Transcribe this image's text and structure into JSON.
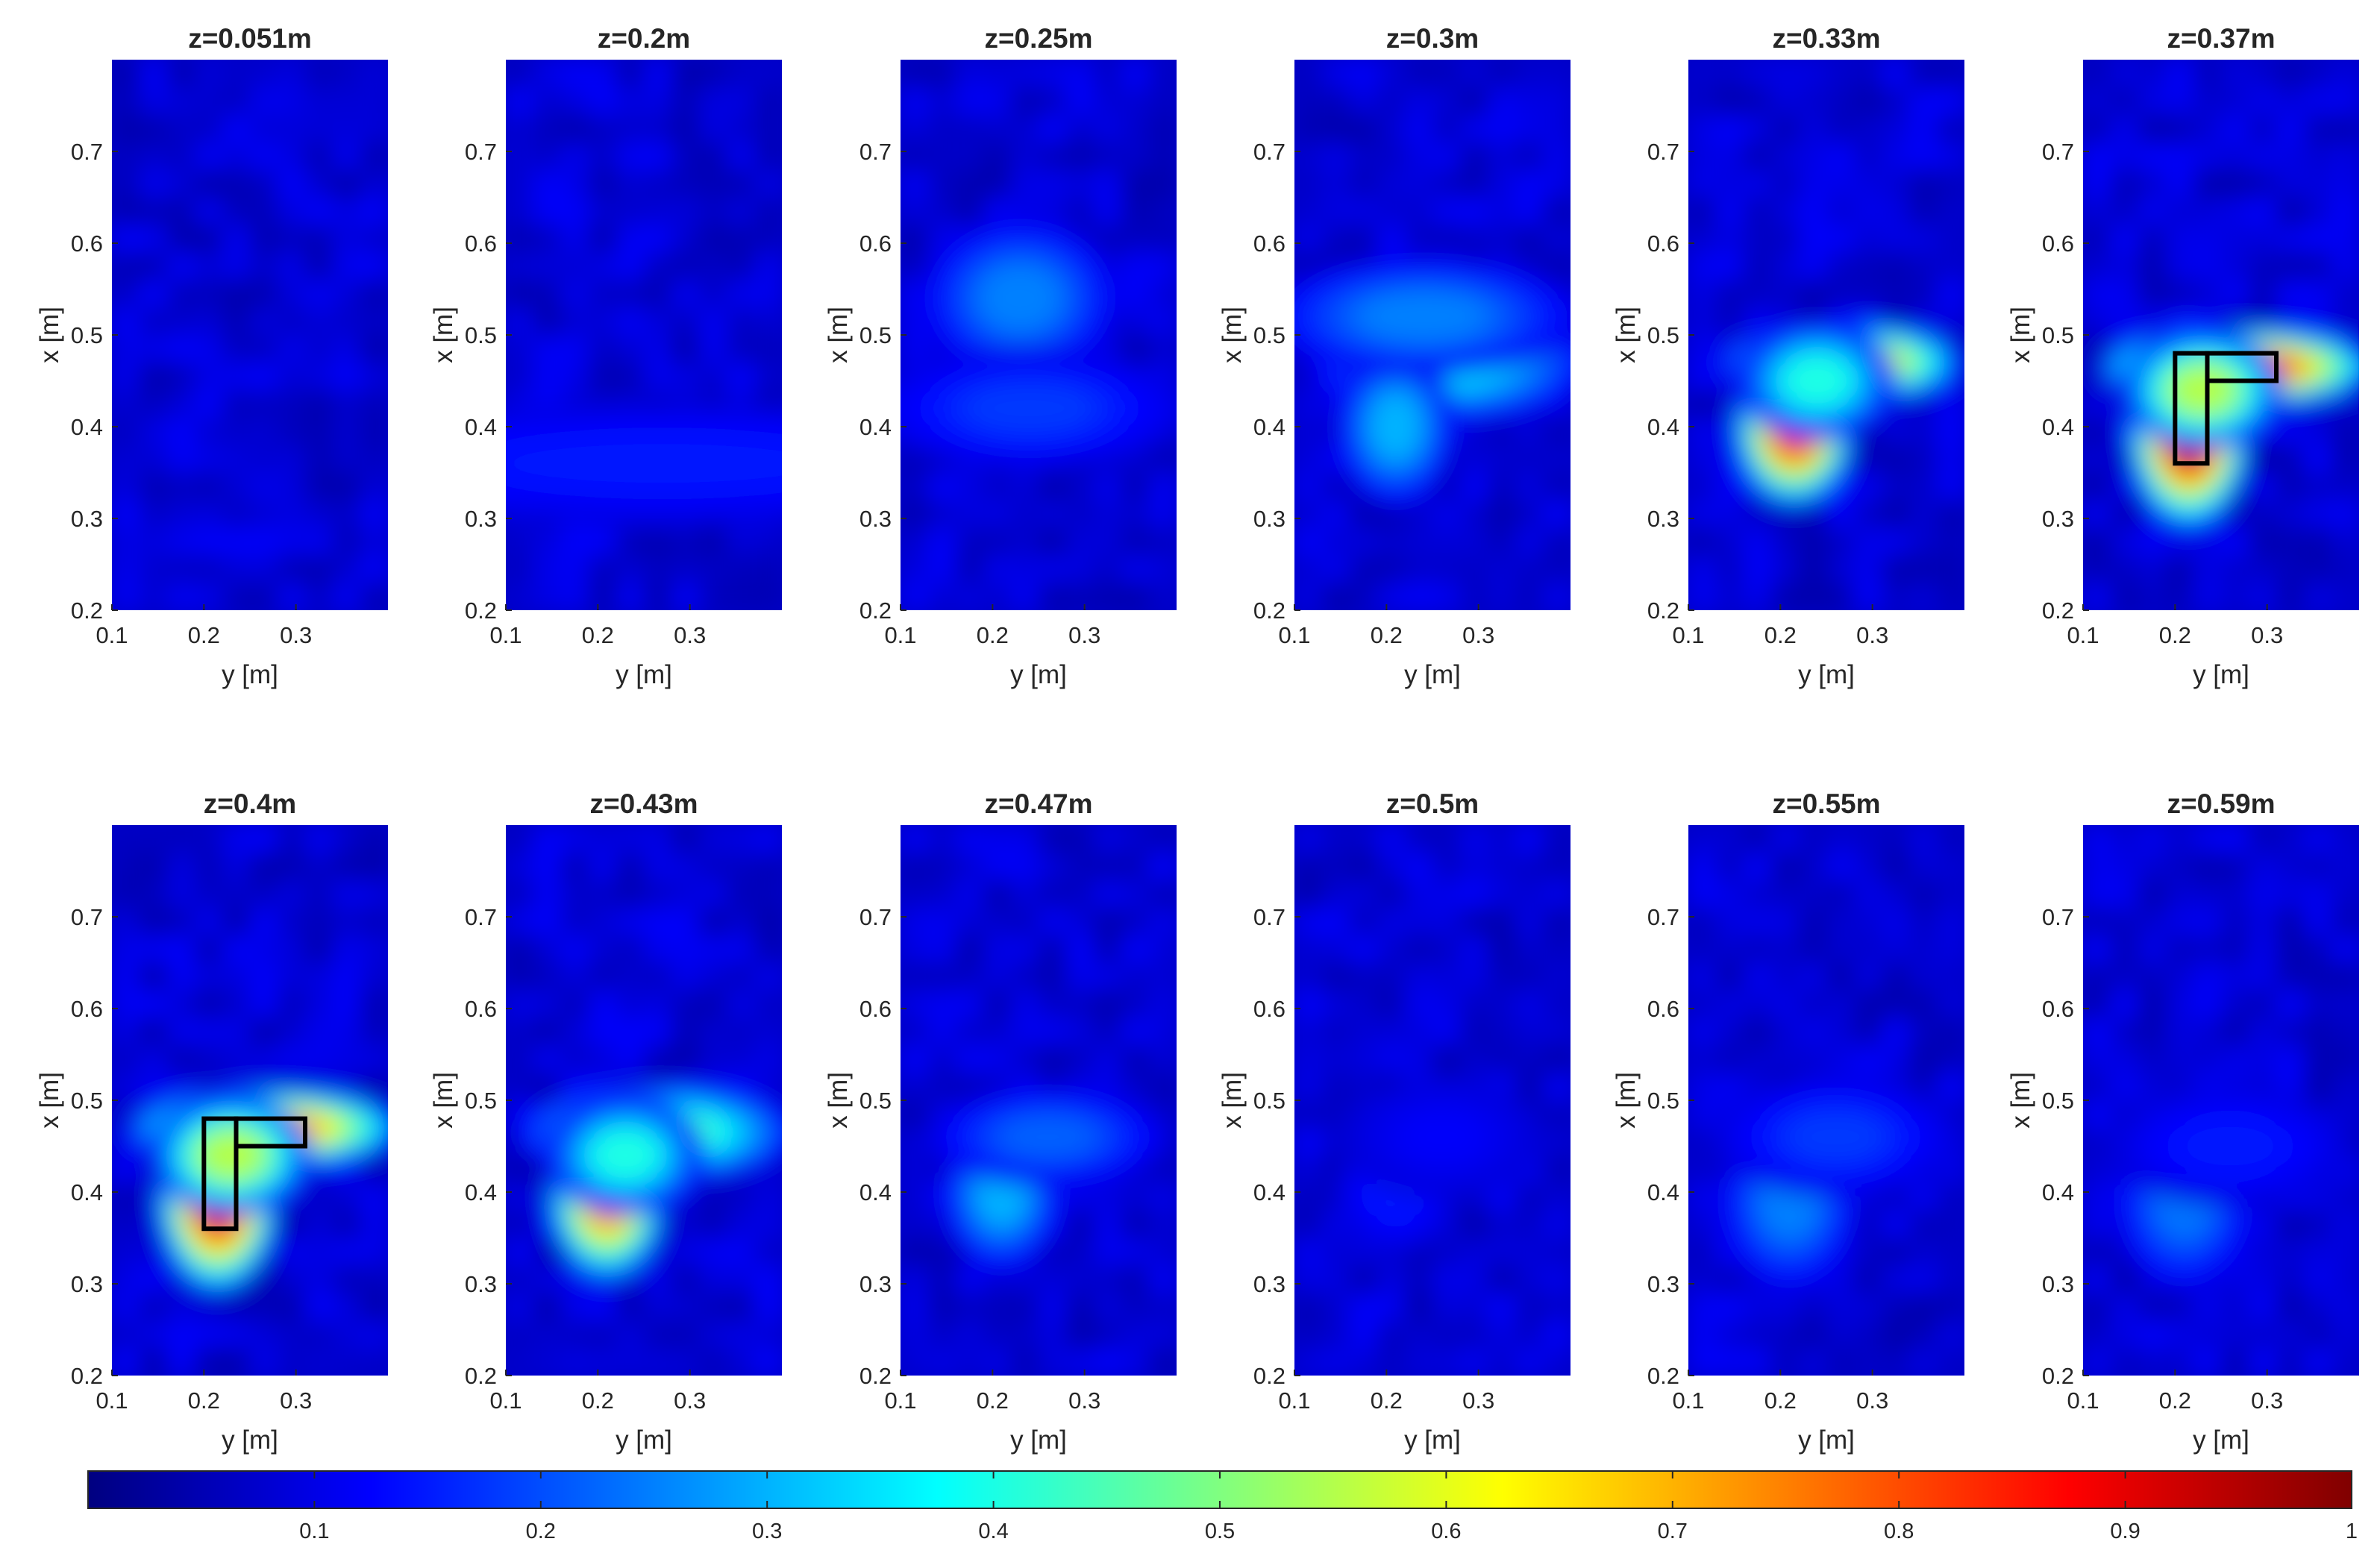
{
  "figure": {
    "colormap": "jet",
    "background": "#ffffff"
  },
  "chart_data": {
    "type": "heatmap",
    "x_axis": {
      "label": "y [m]",
      "range": [
        0.1,
        0.4
      ],
      "ticks": [
        0.1,
        0.2,
        0.3
      ],
      "tick_labels": [
        "0.1",
        "0.2",
        "0.3"
      ]
    },
    "y_axis": {
      "label": "x [m]",
      "range": [
        0.2,
        0.8
      ],
      "ticks": [
        0.2,
        0.3,
        0.4,
        0.5,
        0.6,
        0.7
      ],
      "tick_labels": [
        "0.2",
        "0.3",
        "0.4",
        "0.5",
        "0.6",
        "0.7"
      ]
    },
    "colorbar": {
      "range": [
        0,
        1
      ],
      "ticks": [
        0.1,
        0.2,
        0.3,
        0.4,
        0.5,
        0.6,
        0.7,
        0.8,
        0.9,
        1
      ],
      "tick_labels": [
        "0.1",
        "0.2",
        "0.3",
        "0.4",
        "0.5",
        "0.6",
        "0.7",
        "0.8",
        "0.9",
        "1"
      ],
      "orientation": "horizontal",
      "placement": "bottom"
    },
    "panels": [
      {
        "title": "z=0.051m",
        "peak": 0.12,
        "blobs": [],
        "boxes": false
      },
      {
        "title": "z=0.2m",
        "peak": 0.15,
        "blobs": [
          {
            "x": 0.36,
            "y": 0.27,
            "w": 0.2,
            "h": 0.03,
            "v": 0.15
          }
        ],
        "boxes": false
      },
      {
        "title": "z=0.25m",
        "peak": 0.25,
        "blobs": [
          {
            "x": 0.54,
            "y": 0.23,
            "w": 0.05,
            "h": 0.04,
            "v": 0.25
          },
          {
            "x": 0.42,
            "y": 0.24,
            "w": 0.08,
            "h": 0.03,
            "v": 0.18
          }
        ],
        "boxes": false
      },
      {
        "title": "z=0.3m",
        "peak": 0.35,
        "blobs": [
          {
            "x": 0.47,
            "y": 0.27,
            "w": 0.07,
            "h": 0.03,
            "v": 0.35
          },
          {
            "x": 0.4,
            "y": 0.21,
            "w": 0.03,
            "h": 0.04,
            "v": 0.3
          },
          {
            "x": 0.52,
            "y": 0.24,
            "w": 0.08,
            "h": 0.03,
            "v": 0.25
          }
        ],
        "boxes": false
      },
      {
        "title": "z=0.33m",
        "peak": 0.82,
        "blobs": [
          {
            "x": 0.4,
            "y": 0.215,
            "w": 0.03,
            "h": 0.04,
            "v": 0.82
          },
          {
            "x": 0.47,
            "y": 0.27,
            "w": 0.06,
            "h": 0.02,
            "v": 0.7
          },
          {
            "x": 0.45,
            "y": 0.24,
            "w": 0.04,
            "h": 0.03,
            "v": 0.4
          }
        ],
        "boxes": false
      },
      {
        "title": "z=0.37m",
        "peak": 0.95,
        "blobs": [
          {
            "x": 0.4,
            "y": 0.215,
            "w": 0.03,
            "h": 0.05,
            "v": 0.95
          },
          {
            "x": 0.465,
            "y": 0.27,
            "w": 0.07,
            "h": 0.02,
            "v": 0.82
          },
          {
            "x": 0.44,
            "y": 0.23,
            "w": 0.04,
            "h": 0.03,
            "v": 0.55
          }
        ],
        "boxes": true
      },
      {
        "title": "z=0.4m",
        "peak": 0.92,
        "blobs": [
          {
            "x": 0.4,
            "y": 0.215,
            "w": 0.03,
            "h": 0.05,
            "v": 0.92
          },
          {
            "x": 0.47,
            "y": 0.27,
            "w": 0.07,
            "h": 0.02,
            "v": 0.72
          },
          {
            "x": 0.44,
            "y": 0.23,
            "w": 0.04,
            "h": 0.03,
            "v": 0.55
          }
        ],
        "boxes": true
      },
      {
        "title": "z=0.43m",
        "peak": 0.75,
        "blobs": [
          {
            "x": 0.4,
            "y": 0.21,
            "w": 0.03,
            "h": 0.045,
            "v": 0.75
          },
          {
            "x": 0.465,
            "y": 0.265,
            "w": 0.07,
            "h": 0.025,
            "v": 0.45
          },
          {
            "x": 0.44,
            "y": 0.23,
            "w": 0.04,
            "h": 0.03,
            "v": 0.4
          }
        ],
        "boxes": false
      },
      {
        "title": "z=0.47m",
        "peak": 0.3,
        "blobs": [
          {
            "x": 0.4,
            "y": 0.21,
            "w": 0.03,
            "h": 0.04,
            "v": 0.3
          },
          {
            "x": 0.46,
            "y": 0.26,
            "w": 0.06,
            "h": 0.025,
            "v": 0.22
          }
        ],
        "boxes": false
      },
      {
        "title": "z=0.5m",
        "peak": 0.15,
        "blobs": [
          {
            "x": 0.4,
            "y": 0.21,
            "w": 0.03,
            "h": 0.03,
            "v": 0.15
          },
          {
            "x": 0.46,
            "y": 0.26,
            "w": 0.05,
            "h": 0.03,
            "v": 0.12
          }
        ],
        "boxes": false
      },
      {
        "title": "z=0.55m",
        "peak": 0.25,
        "blobs": [
          {
            "x": 0.39,
            "y": 0.21,
            "w": 0.035,
            "h": 0.045,
            "v": 0.25
          },
          {
            "x": 0.46,
            "y": 0.26,
            "w": 0.06,
            "h": 0.03,
            "v": 0.18
          }
        ],
        "boxes": false
      },
      {
        "title": "z=0.59m",
        "peak": 0.24,
        "blobs": [
          {
            "x": 0.39,
            "y": 0.21,
            "w": 0.035,
            "h": 0.045,
            "v": 0.24
          },
          {
            "x": 0.45,
            "y": 0.26,
            "w": 0.06,
            "h": 0.03,
            "v": 0.15
          }
        ],
        "boxes": false
      }
    ],
    "overlay_boxes": [
      {
        "y_min": 0.2,
        "y_max": 0.235,
        "x_min": 0.36,
        "x_max": 0.48
      },
      {
        "y_min": 0.235,
        "y_max": 0.31,
        "x_min": 0.45,
        "x_max": 0.48
      }
    ]
  }
}
